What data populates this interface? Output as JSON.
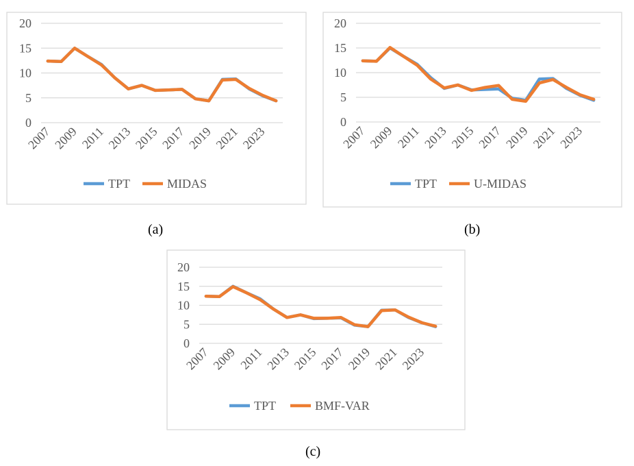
{
  "chart_data": [
    {
      "type": "line",
      "caption": "(a)",
      "x": [
        "2007",
        "2008",
        "2009",
        "2010",
        "2011",
        "2012",
        "2013",
        "2014",
        "2015",
        "2016",
        "2017",
        "2018",
        "2019",
        "2020",
        "2021",
        "2022",
        "2023",
        "2024"
      ],
      "xtick_labels": [
        "2007",
        "2009",
        "2011",
        "2013",
        "2015",
        "2017",
        "2019",
        "2021",
        "2023"
      ],
      "yticks": [
        0,
        5,
        10,
        15,
        20
      ],
      "ylim": [
        0,
        20
      ],
      "grid": true,
      "legend_position": "bottom",
      "series": [
        {
          "name": "TPT",
          "color": "#5B9BD5",
          "values": [
            12.4,
            12.3,
            15.0,
            13.3,
            11.7,
            9.0,
            6.8,
            7.5,
            6.5,
            6.6,
            6.7,
            4.8,
            4.4,
            8.7,
            8.8,
            6.8,
            5.4,
            4.4
          ]
        },
        {
          "name": "MIDAS",
          "color": "#ED7D31",
          "values": [
            12.4,
            12.3,
            15.0,
            13.3,
            11.6,
            9.0,
            6.8,
            7.5,
            6.5,
            6.6,
            6.7,
            4.8,
            4.4,
            8.6,
            8.7,
            6.9,
            5.5,
            4.4
          ]
        }
      ]
    },
    {
      "type": "line",
      "caption": "(b)",
      "x": [
        "2007",
        "2008",
        "2009",
        "2010",
        "2011",
        "2012",
        "2013",
        "2014",
        "2015",
        "2016",
        "2017",
        "2018",
        "2019",
        "2020",
        "2021",
        "2022",
        "2023",
        "2024"
      ],
      "xtick_labels": [
        "2007",
        "2009",
        "2011",
        "2013",
        "2015",
        "2017",
        "2019",
        "2021",
        "2023"
      ],
      "yticks": [
        0,
        5,
        10,
        15,
        20
      ],
      "ylim": [
        0,
        20
      ],
      "grid": true,
      "legend_position": "bottom",
      "series": [
        {
          "name": "TPT",
          "color": "#5B9BD5",
          "values": [
            12.4,
            12.3,
            15.0,
            13.3,
            11.7,
            9.0,
            6.8,
            7.5,
            6.5,
            6.6,
            6.7,
            4.8,
            4.4,
            8.7,
            8.8,
            6.8,
            5.4,
            4.4
          ]
        },
        {
          "name": "U-MIDAS",
          "color": "#ED7D31",
          "values": [
            12.4,
            12.3,
            15.1,
            13.3,
            11.5,
            8.7,
            6.9,
            7.5,
            6.4,
            7.0,
            7.4,
            4.6,
            4.2,
            7.9,
            8.6,
            7.0,
            5.5,
            4.6
          ]
        }
      ]
    },
    {
      "type": "line",
      "caption": "(c)",
      "x": [
        "2007",
        "2008",
        "2009",
        "2010",
        "2011",
        "2012",
        "2013",
        "2014",
        "2015",
        "2016",
        "2017",
        "2018",
        "2019",
        "2020",
        "2021",
        "2022",
        "2023",
        "2024"
      ],
      "xtick_labels": [
        "2007",
        "2009",
        "2011",
        "2013",
        "2015",
        "2017",
        "2019",
        "2021",
        "2023"
      ],
      "yticks": [
        0,
        5,
        10,
        15,
        20
      ],
      "ylim": [
        0,
        20
      ],
      "grid": true,
      "legend_position": "bottom",
      "series": [
        {
          "name": "TPT",
          "color": "#5B9BD5",
          "values": [
            12.4,
            12.3,
            15.0,
            13.3,
            11.7,
            9.0,
            6.8,
            7.5,
            6.5,
            6.6,
            6.7,
            4.8,
            4.4,
            8.7,
            8.8,
            6.8,
            5.4,
            4.4
          ]
        },
        {
          "name": "BMF-VAR",
          "color": "#ED7D31",
          "values": [
            12.4,
            12.3,
            14.9,
            13.3,
            11.5,
            9.0,
            6.8,
            7.5,
            6.6,
            6.6,
            6.8,
            4.9,
            4.4,
            8.6,
            8.8,
            6.9,
            5.4,
            4.5
          ]
        }
      ]
    }
  ]
}
